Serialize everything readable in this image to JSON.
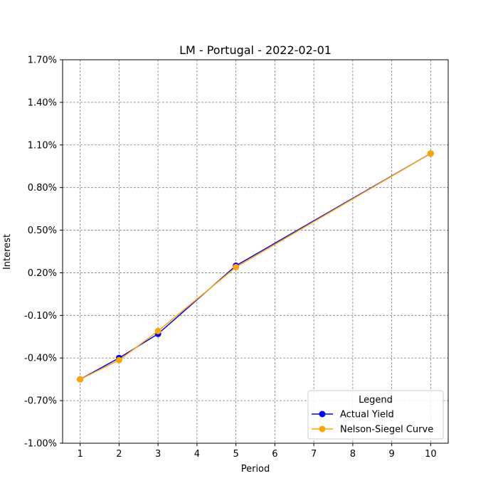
{
  "chart_data": {
    "type": "line",
    "title": "LM - Portugal - 2022-02-01",
    "xlabel": "Period",
    "ylabel": "Interest",
    "x_ticks": [
      1,
      2,
      3,
      4,
      5,
      6,
      7,
      8,
      9,
      10
    ],
    "y_ticks": [
      "-1.00%",
      "-0.70%",
      "-0.40%",
      "-0.10%",
      "0.20%",
      "0.50%",
      "0.80%",
      "1.10%",
      "1.40%",
      "1.70%"
    ],
    "y_tick_values": [
      -1.0,
      -0.7,
      -0.4,
      -0.1,
      0.2,
      0.5,
      0.8,
      1.1,
      1.4,
      1.7
    ],
    "xlim": [
      0.55,
      10.45
    ],
    "ylim": [
      -1.0,
      1.7
    ],
    "grid": true,
    "legend": {
      "title": "Legend",
      "placement": "lower-right"
    },
    "series": [
      {
        "name": "Actual Yield",
        "color": "#0000ff",
        "x": [
          1,
          2,
          3,
          5,
          10
        ],
        "y": [
          -0.55,
          -0.4,
          -0.23,
          0.25,
          1.04
        ]
      },
      {
        "name": "Nelson-Siegel Curve",
        "color": "#ffa500",
        "x": [
          1,
          2,
          3,
          5,
          10
        ],
        "y": [
          -0.55,
          -0.415,
          -0.21,
          0.24,
          1.04
        ]
      }
    ]
  }
}
